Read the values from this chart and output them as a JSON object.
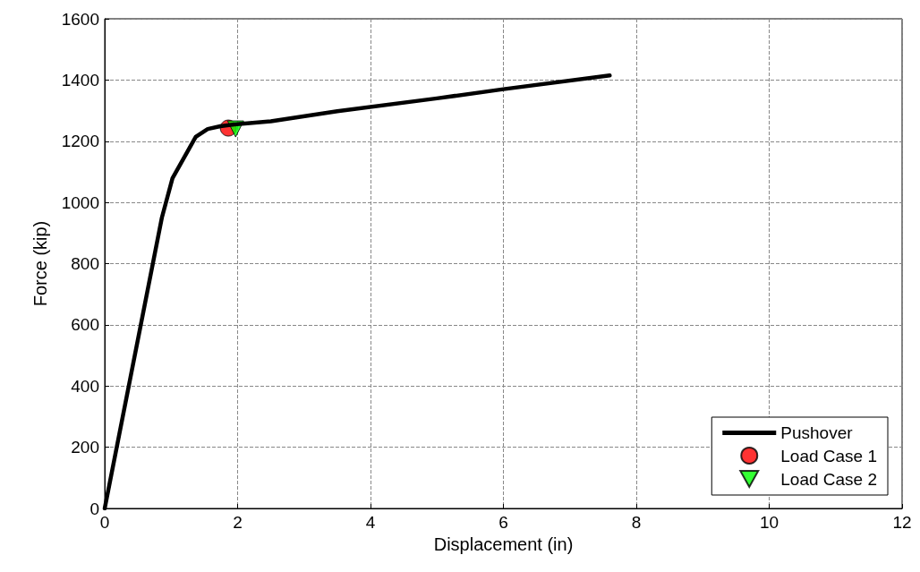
{
  "chart_data": {
    "type": "line",
    "xlabel": "Displacement (in)",
    "ylabel": "Force (kip)",
    "xlim": [
      0,
      12
    ],
    "xticks": [
      0,
      2,
      4,
      6,
      8,
      10,
      12
    ],
    "ylim": [
      0,
      1600
    ],
    "yticks": [
      0,
      200,
      400,
      600,
      800,
      1000,
      1200,
      1400,
      1600
    ],
    "grid": true,
    "legend": "bottom right",
    "series": [
      {
        "name": "Pushover",
        "color": "#000000",
        "marker": "none",
        "line_style": "solid",
        "x": [
          0,
          0.86,
          1.02,
          1.37,
          1.55,
          1.74,
          1.95,
          2.5,
          3.5,
          5,
          6,
          7.6
        ],
        "values": [
          0,
          950,
          1079,
          1214,
          1240,
          1249,
          1255,
          1265,
          1298,
          1340,
          1370,
          1415
        ]
      },
      {
        "name": "Load Case 1",
        "type": "scatter",
        "color": "#ff0000",
        "marker": "circle",
        "x": [
          1.86
        ],
        "values": [
          1243
        ]
      },
      {
        "name": "Load Case 2",
        "type": "scatter",
        "color": "#00ff00",
        "marker": "triangle",
        "x": [
          1.97
        ],
        "values": [
          1240
        ]
      }
    ]
  }
}
